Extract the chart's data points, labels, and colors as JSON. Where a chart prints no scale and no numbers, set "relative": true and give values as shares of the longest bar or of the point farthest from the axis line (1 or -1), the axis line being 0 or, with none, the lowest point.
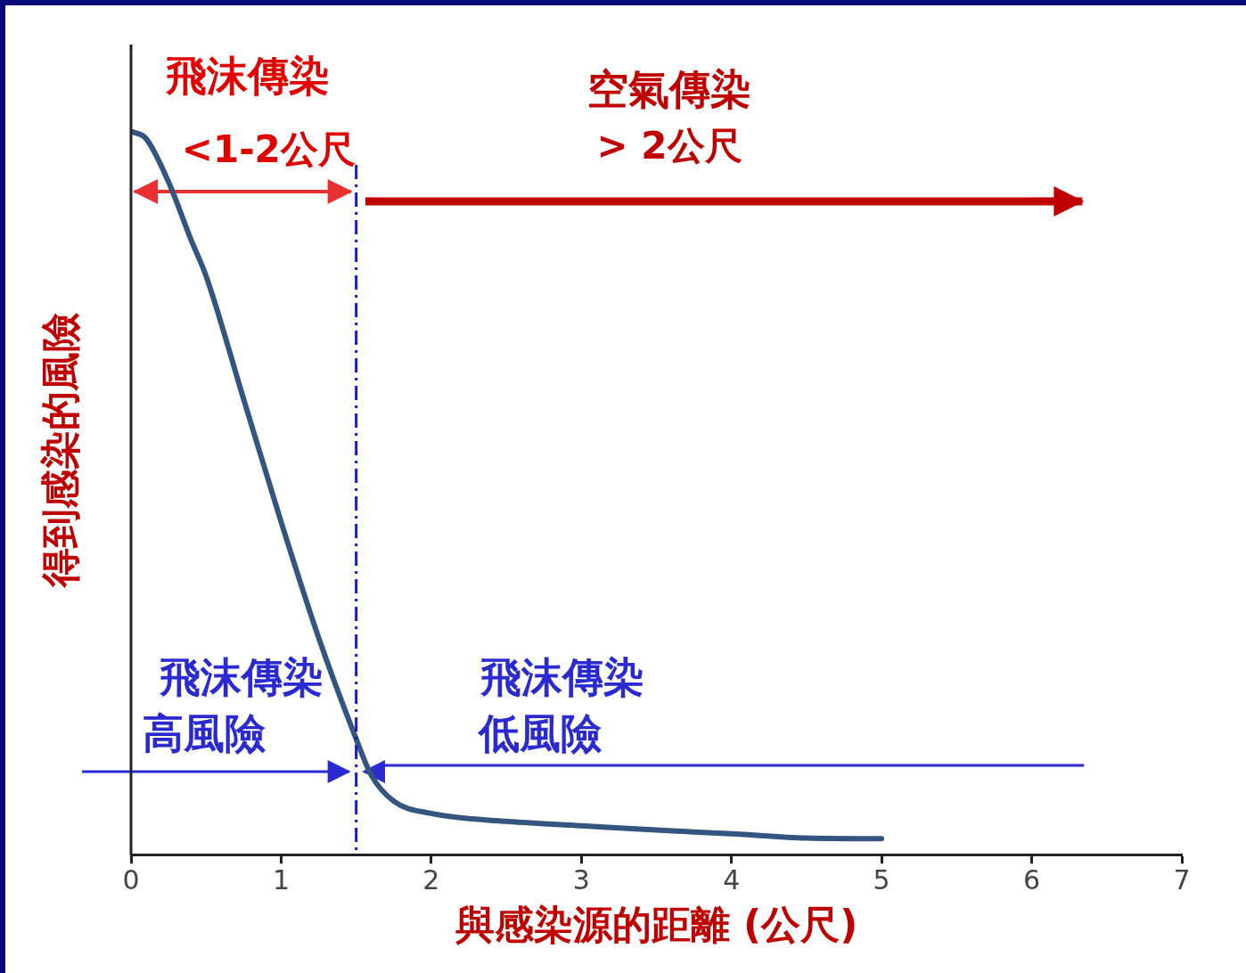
{
  "chart_data": {
    "type": "line",
    "relative": true,
    "xlabel": "與感染源的距離 (公尺)",
    "ylabel": "得到感染的風險",
    "x": [
      0,
      0.1,
      0.25,
      0.4,
      0.5,
      0.75,
      1,
      1.25,
      1.5,
      1.6,
      1.75,
      2,
      2.5,
      3,
      3.5,
      4,
      4.5,
      5
    ],
    "series": [
      {
        "color": "#34557f",
        "values": [
          1,
          0.99,
          0.93,
          0.85,
          0.8,
          0.63,
          0.46,
          0.3,
          0.16,
          0.11,
          0.074,
          0.057,
          0.046,
          0.04,
          0.034,
          0.029,
          0.023,
          0.022
        ]
      }
    ],
    "xlim": [
      0,
      7
    ],
    "xticks": [
      0,
      1,
      2,
      3,
      4,
      5,
      6,
      7
    ],
    "grid": false,
    "legend": false,
    "marker": "none",
    "line_style": "solid",
    "ref_lines": [
      {
        "axis": "x",
        "value": 1.5,
        "color": "#1a1acc",
        "line_style": "dashdot"
      }
    ],
    "annotations": [
      "飛沫傳染",
      "<1-2公尺",
      "空氣傳染",
      "> 2公尺",
      "飛沫傳染",
      "高風險",
      "飛沫傳染",
      "低風險"
    ]
  }
}
